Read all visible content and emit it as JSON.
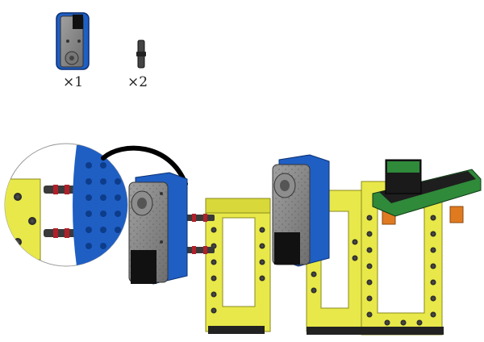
{
  "parts_list": {
    "items": [
      {
        "part": "motor-module",
        "quantity_label": "×1",
        "color": "#1f5fc4"
      },
      {
        "part": "connector-pin",
        "quantity_label": "×2",
        "color": "#333333"
      }
    ]
  },
  "colors": {
    "frame_yellow": "#e8e84a",
    "frame_edge": "#8a8a20",
    "module_blue": "#1f5fc4",
    "module_grey": "#8a8a8a",
    "pin_red": "#b0202a",
    "pin_dark": "#3a3a3a",
    "green_board": "#2f8a3a",
    "orange_peg": "#e07a20"
  },
  "steps": {
    "callout": "zoom-detail-pins-into-module",
    "arrow": "curved-black-arrow",
    "before": "module-with-pins-approaching-frame",
    "after": "module-attached-to-frame"
  }
}
